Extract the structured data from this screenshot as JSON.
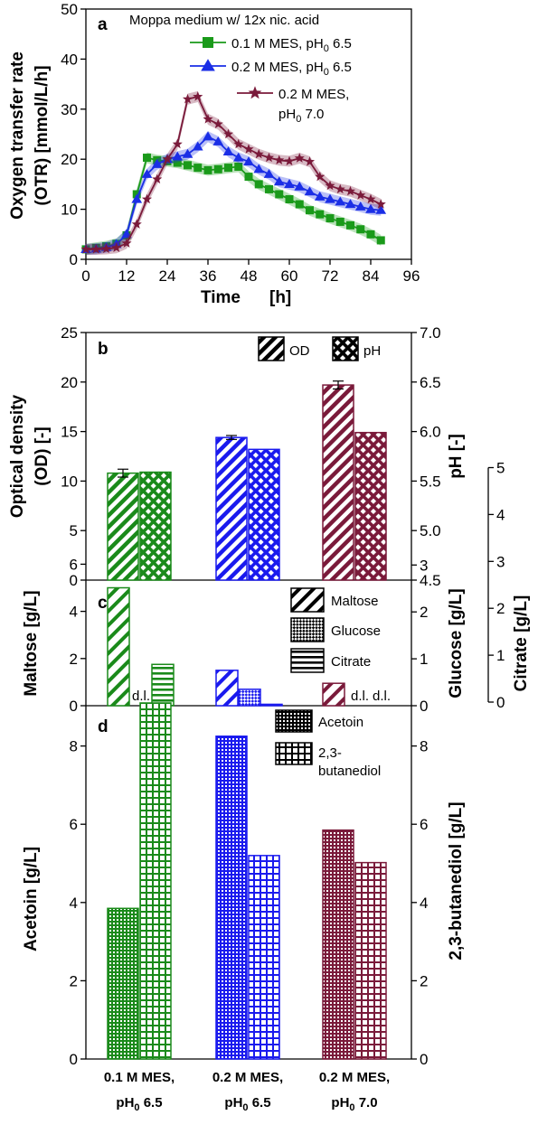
{
  "chart_data": [
    {
      "panel": "a",
      "type": "line",
      "title": "Moppa medium w/ 12x nic. acid",
      "xlabel": [
        "Time",
        "[h]"
      ],
      "ylabel": [
        "Oxygen transfer rate",
        "(OTR)   [mmol/L/h]"
      ],
      "xlim": [
        0,
        96
      ],
      "ylim": [
        0,
        50
      ],
      "xticks": [
        "0",
        "12",
        "24",
        "36",
        "48",
        "60",
        "72",
        "84",
        "96"
      ],
      "yticks": [
        "0",
        "10",
        "20",
        "30",
        "40",
        "50"
      ],
      "legend_position": "top-right",
      "series": [
        {
          "name": "0.1 M MES, pH0 6.5",
          "name_parts": [
            "0.1 M MES, pH",
            "0",
            " 6.5"
          ],
          "color": "#1a9a1a",
          "marker": "square",
          "x": [
            0,
            3,
            6,
            9,
            12,
            15,
            18,
            21,
            24,
            27,
            30,
            33,
            36,
            39,
            42,
            45,
            48,
            51,
            54,
            57,
            60,
            63,
            66,
            69,
            72,
            75,
            78,
            81,
            84,
            87
          ],
          "y": [
            2,
            2.3,
            2.6,
            3.1,
            4.8,
            13,
            20.3,
            19.8,
            19.6,
            19.3,
            18.8,
            18.3,
            17.8,
            18,
            18.3,
            18.5,
            16.5,
            15,
            14,
            13,
            12,
            11,
            9.8,
            9,
            8.2,
            7.5,
            6.8,
            6,
            5,
            3.8
          ]
        },
        {
          "name": "0.2 M MES, pH0 6.5",
          "name_parts": [
            "0.2 M MES, pH",
            "0",
            " 6.5"
          ],
          "color": "#1a2ee6",
          "marker": "triangle",
          "x": [
            0,
            3,
            6,
            9,
            12,
            15,
            18,
            21,
            24,
            27,
            30,
            33,
            36,
            39,
            42,
            45,
            48,
            51,
            54,
            57,
            60,
            63,
            66,
            69,
            72,
            75,
            78,
            81,
            84,
            87
          ],
          "y": [
            2,
            2.1,
            2.4,
            3,
            5,
            12,
            17,
            19,
            20,
            20.5,
            21,
            22.5,
            24.5,
            23.5,
            21.5,
            20.3,
            19.5,
            18,
            17,
            15.5,
            15,
            14.5,
            13.5,
            12.5,
            12,
            11.5,
            11,
            10.5,
            10,
            9.8
          ]
        },
        {
          "name": "0.2 M MES, pH0 7.0",
          "name_parts": [
            "0.2 M MES,",
            "pH",
            "0",
            " 7.0"
          ],
          "color": "#7a1a3a",
          "marker": "star",
          "x": [
            0,
            3,
            6,
            9,
            12,
            15,
            18,
            21,
            24,
            27,
            30,
            33,
            36,
            39,
            42,
            45,
            48,
            51,
            54,
            57,
            60,
            63,
            66,
            69,
            72,
            75,
            78,
            81,
            84,
            87
          ],
          "y": [
            2,
            2,
            2.1,
            2.3,
            3.2,
            7,
            12,
            16,
            20,
            23,
            32,
            32.5,
            28,
            27,
            25,
            23,
            22,
            21,
            20.3,
            19.8,
            19.6,
            20.2,
            19.5,
            16.5,
            14.7,
            14,
            13.6,
            12.8,
            12,
            11
          ]
        }
      ]
    },
    {
      "panel": "b",
      "type": "bar",
      "categories": [
        "0.1 M MES, pH0 6.5",
        "0.2 M MES, pH0 6.5",
        "0.2 M MES, pH0 7.0"
      ],
      "ylabel": [
        "Optical density",
        "(OD)   [-]"
      ],
      "ylabel_right": "pH   [-]",
      "ylim": [
        0,
        25
      ],
      "ylim_right": [
        4.5,
        7.0
      ],
      "yticks": [
        "0",
        "5",
        "10",
        "15",
        "20",
        "25"
      ],
      "yticks_right": [
        "4.5",
        "5.0",
        "5.5",
        "6.0",
        "6.5",
        "7.0"
      ],
      "legend_position": "top-right",
      "series": [
        {
          "name": "OD",
          "pattern": "diagonal",
          "values": [
            10.8,
            14.4,
            19.7
          ],
          "error": [
            0.4,
            0.2,
            0.4
          ]
        },
        {
          "name": "pH",
          "pattern": "crosshatch",
          "axis": "right",
          "values": [
            5.59,
            5.82,
            5.99
          ]
        }
      ],
      "colors": [
        "#1a8a1a",
        "#1a1aee",
        "#7a1a3a"
      ]
    },
    {
      "panel": "c",
      "type": "bar",
      "categories": [
        "0.1 M MES, pH0 6.5",
        "0.2 M MES, pH0 6.5",
        "0.2 M MES, pH0 7.0"
      ],
      "ylabel": "Maltose   [g/L]",
      "ylabel_right": [
        "Glucose   [g/L]",
        "Citrate   [g/L]"
      ],
      "ylim": [
        0,
        8.7
      ],
      "yticks": [
        "0",
        "2",
        "4",
        "6"
      ],
      "ylim_right": [
        0,
        3.5
      ],
      "yticks_right": [
        "0",
        "1",
        "2",
        "3"
      ],
      "ylim_right2": [
        0,
        5
      ],
      "yticks_right2": [
        "0",
        "1",
        "2",
        "3",
        "4",
        "5"
      ],
      "legend_position": "top-right",
      "series": [
        {
          "name": "Maltose",
          "pattern": "diagonal-wide",
          "values": [
            5.0,
            1.5,
            0.95
          ]
        },
        {
          "name": "Glucose",
          "pattern": "checker",
          "axis": "right",
          "values": [
            0,
            0.35,
            0
          ]
        },
        {
          "name": "Citrate",
          "pattern": "horizontal",
          "axis": "right2",
          "values": [
            0.88,
            0.03,
            0
          ]
        }
      ],
      "annotations": [
        "d.l.",
        "d.l.",
        "d.l."
      ]
    },
    {
      "panel": "d",
      "type": "bar",
      "categories": [
        "0.1 M MES, pH0 6.5",
        "0.2 M MES, pH0 6.5",
        "0.2 M MES, pH0 7.0"
      ],
      "category_parts": [
        [
          "0.1 M MES,",
          "pH",
          "0",
          " 6.5"
        ],
        [
          "0.2 M MES,",
          "pH",
          "0",
          " 6.5"
        ],
        [
          "0.2 M MES,",
          "pH",
          "0",
          " 7.0"
        ]
      ],
      "ylabel": "Acetoin   [g/L]",
      "ylabel_right": "2,3-butanediol   [g/L]",
      "ylim": [
        0,
        9.7
      ],
      "yticks": [
        "0",
        "2",
        "4",
        "6",
        "8"
      ],
      "ylim_right": [
        0,
        9.7
      ],
      "yticks_right": [
        "0",
        "2",
        "4",
        "6",
        "8"
      ],
      "legend_position": "top-right",
      "series": [
        {
          "name": "Acetoin",
          "pattern": "dots",
          "values": [
            3.85,
            8.25,
            5.85
          ]
        },
        {
          "name": "2,3-butanediol",
          "name_parts": [
            "2,3-",
            "butanediol"
          ],
          "pattern": "grid",
          "axis": "right",
          "values": [
            9.1,
            5.2,
            5.02
          ]
        }
      ]
    }
  ]
}
